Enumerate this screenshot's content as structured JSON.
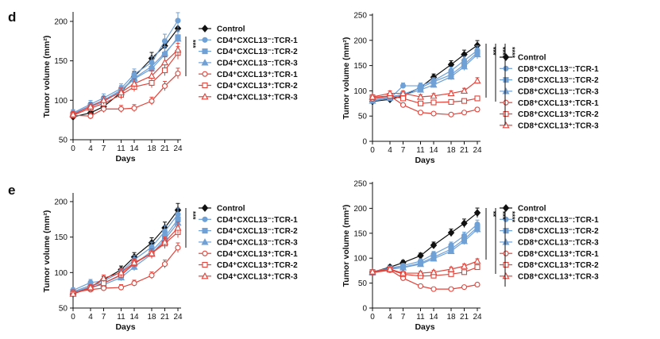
{
  "panel_letters": [
    "d",
    "e"
  ],
  "colors": {
    "control": "#111111",
    "neg": "#6fa0d6",
    "pos": "#e0443b",
    "axis": "#111111"
  },
  "chart_data": [
    {
      "type": "line",
      "panel": "d",
      "xlabel": "Days",
      "ylabel": "Tumor volume (mm²)",
      "x": [
        0,
        4,
        7,
        11,
        14,
        18,
        21,
        24
      ],
      "ylim": [
        50,
        210
      ],
      "yticks": [
        50,
        100,
        150,
        200
      ],
      "series": [
        {
          "name": "Control",
          "values": [
            79,
            84,
            92,
            110,
            130,
            153,
            169,
            191
          ]
        },
        {
          "name": "CD4⁺CXCL13⁻:TCR-1",
          "values": [
            84,
            95,
            103,
            115,
            133,
            148,
            175,
            201
          ]
        },
        {
          "name": "CD4⁺CXCL13⁻:TCR-2",
          "values": [
            82,
            92,
            98,
            112,
            127,
            140,
            158,
            180
          ]
        },
        {
          "name": "CD4⁺CXCL13⁻:TCR-3",
          "values": [
            83,
            93,
            100,
            113,
            128,
            143,
            160,
            178
          ]
        },
        {
          "name": "CD4⁺CXCL13⁺:TCR-1",
          "values": [
            81,
            80,
            89,
            89,
            90,
            99,
            118,
            134
          ]
        },
        {
          "name": "CD4⁺CXCL13⁺:TCR-2",
          "values": [
            81,
            90,
            96,
            107,
            117,
            122,
            138,
            160
          ]
        },
        {
          "name": "CD4⁺CXCL13⁺:TCR-3",
          "values": [
            82,
            92,
            100,
            110,
            121,
            131,
            148,
            164
          ]
        }
      ],
      "significance": [
        {
          "label": "***"
        }
      ]
    },
    {
      "type": "line",
      "panel": "d",
      "xlabel": "Days",
      "ylabel": "Tumor volume (mm²)",
      "x": [
        0,
        4,
        7,
        11,
        14,
        18,
        21,
        24
      ],
      "ylim": [
        0,
        250
      ],
      "yticks": [
        0,
        50,
        100,
        150,
        200,
        250
      ],
      "series": [
        {
          "name": "Control",
          "values": [
            79,
            83,
            90,
            107,
            127,
            152,
            172,
            190
          ]
        },
        {
          "name": "CD8⁺CXCL13⁻:TCR-1",
          "values": [
            80,
            85,
            110,
            110,
            120,
            140,
            160,
            180
          ]
        },
        {
          "name": "CD8⁺CXCL13⁻:TCR-2",
          "values": [
            81,
            88,
            93,
            106,
            118,
            132,
            152,
            176
          ]
        },
        {
          "name": "CD8⁺CXCL13⁻:TCR-3",
          "values": [
            80,
            86,
            91,
            102,
            112,
            128,
            148,
            172
          ]
        },
        {
          "name": "CD8⁺CXCL13⁺:TCR-1",
          "values": [
            84,
            90,
            72,
            57,
            55,
            53,
            57,
            63
          ]
        },
        {
          "name": "CD8⁺CXCL13⁺:TCR-2",
          "values": [
            87,
            90,
            85,
            75,
            77,
            78,
            80,
            85
          ]
        },
        {
          "name": "CD8⁺CXCL13⁺:TCR-3",
          "values": [
            88,
            95,
            95,
            88,
            90,
            95,
            100,
            120
          ]
        }
      ],
      "significance": [
        {
          "label": "***"
        },
        {
          "label": "****"
        },
        {
          "label": "****"
        }
      ]
    },
    {
      "type": "line",
      "panel": "e",
      "xlabel": "Days",
      "ylabel": "Tumor volume (mm²)",
      "x": [
        0,
        4,
        7,
        11,
        14,
        18,
        21,
        24
      ],
      "ylim": [
        50,
        210
      ],
      "yticks": [
        50,
        100,
        150,
        200
      ],
      "series": [
        {
          "name": "Control",
          "values": [
            70,
            80,
            90,
            104,
            122,
            142,
            163,
            188
          ]
        },
        {
          "name": "CD4⁺CXCL13⁻:TCR-1",
          "values": [
            75,
            86,
            88,
            101,
            118,
            136,
            158,
            182
          ]
        },
        {
          "name": "CD4⁺CXCL13⁻:TCR-2",
          "values": [
            73,
            82,
            85,
            96,
            112,
            130,
            150,
            175
          ]
        },
        {
          "name": "CD4⁺CXCL13⁻:TCR-3",
          "values": [
            72,
            80,
            83,
            93,
            108,
            126,
            147,
            170
          ]
        },
        {
          "name": "CD4⁺CXCL13⁺:TCR-1",
          "values": [
            72,
            76,
            78,
            79,
            85,
            96,
            112,
            135
          ]
        },
        {
          "name": "CD4⁺CXCL13⁺:TCR-2",
          "values": [
            70,
            78,
            85,
            97,
            113,
            127,
            141,
            157
          ]
        },
        {
          "name": "CD4⁺CXCL13⁺:TCR-3",
          "values": [
            70,
            79,
            92,
            100,
            114,
            127,
            143,
            163
          ]
        }
      ],
      "significance": [
        {
          "label": "***"
        }
      ]
    },
    {
      "type": "line",
      "panel": "e",
      "xlabel": "Days",
      "ylabel": "Tumor volume (mm²)",
      "x": [
        0,
        4,
        7,
        11,
        14,
        18,
        21,
        24
      ],
      "ylim": [
        0,
        250
      ],
      "yticks": [
        0,
        50,
        100,
        150,
        200,
        250
      ],
      "series": [
        {
          "name": "Control",
          "values": [
            72,
            82,
            91,
            105,
            126,
            151,
            170,
            191
          ]
        },
        {
          "name": "CD8⁺CXCL13⁻:TCR-1",
          "values": [
            73,
            80,
            85,
            94,
            108,
            126,
            145,
            168
          ]
        },
        {
          "name": "CD8⁺CXCL13⁻:TCR-2",
          "values": [
            72,
            79,
            82,
            90,
            102,
            118,
            138,
            162
          ]
        },
        {
          "name": "CD8⁺CXCL13⁻:TCR-3",
          "values": [
            71,
            78,
            81,
            88,
            99,
            114,
            134,
            158
          ]
        },
        {
          "name": "CD8⁺CXCL13⁺:TCR-1",
          "values": [
            71,
            76,
            60,
            44,
            38,
            38,
            42,
            47
          ]
        },
        {
          "name": "CD8⁺CXCL13⁺:TCR-2",
          "values": [
            72,
            77,
            68,
            64,
            65,
            68,
            72,
            82
          ]
        },
        {
          "name": "CD8⁺CXCL13⁺:TCR-3",
          "values": [
            73,
            78,
            70,
            70,
            72,
            78,
            84,
            94
          ]
        }
      ],
      "significance": [
        {
          "label": "**"
        },
        {
          "label": "***"
        },
        {
          "label": "****"
        }
      ]
    }
  ]
}
